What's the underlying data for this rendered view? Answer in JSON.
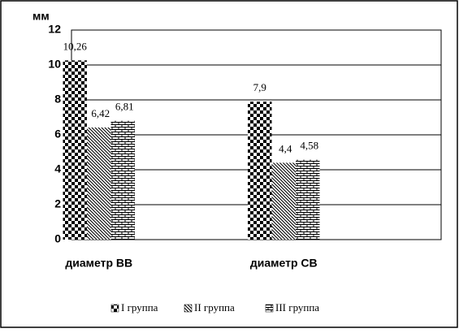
{
  "chart_data": {
    "type": "bar",
    "y_label": "мм",
    "categories": [
      "диаметр ВВ",
      "диаметр СВ"
    ],
    "series": [
      {
        "name": "I группа",
        "color": "#000000",
        "values": [
          10.26,
          7.9
        ],
        "value_labels": [
          "10,26",
          "7,9"
        ]
      },
      {
        "name": "II группа",
        "color": "#000000",
        "values": [
          6.42,
          4.4
        ],
        "value_labels": [
          "6,42",
          "4,4"
        ]
      },
      {
        "name": "III группа",
        "color": "#000000",
        "values": [
          6.81,
          4.58
        ],
        "value_labels": [
          "6,81",
          "4,58"
        ]
      }
    ],
    "ylim": [
      0,
      12
    ],
    "yticks": [
      0,
      2,
      4,
      6,
      8,
      10,
      12
    ],
    "grid": true,
    "legend": "bottom"
  }
}
